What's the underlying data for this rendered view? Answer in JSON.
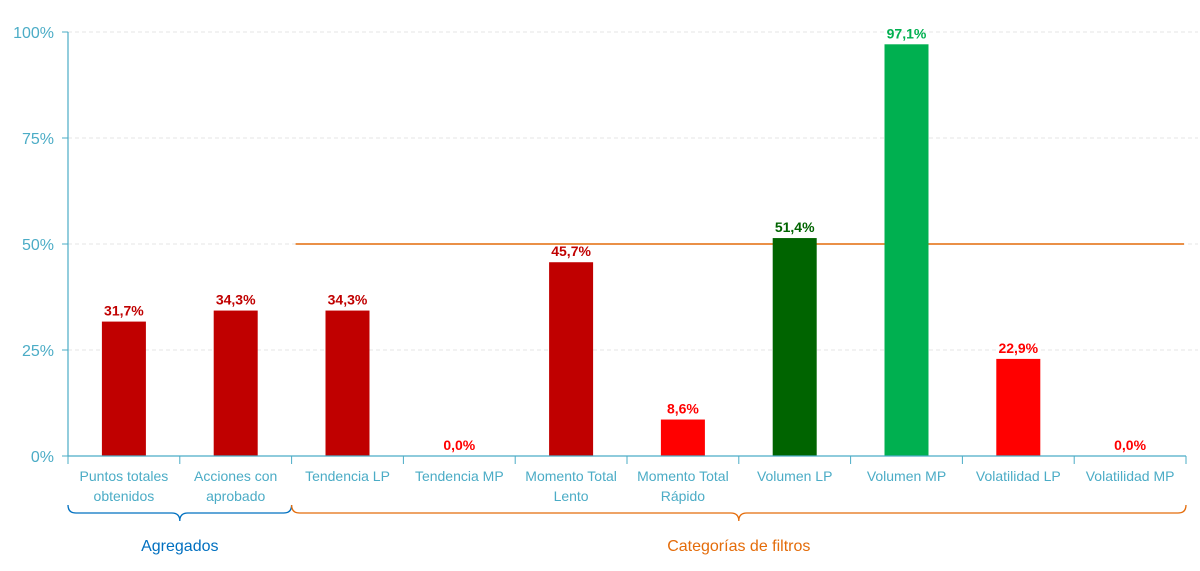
{
  "chart_data": {
    "type": "bar",
    "categories": [
      [
        "Puntos totales",
        "obtenidos"
      ],
      [
        "Acciones con",
        "aprobado"
      ],
      [
        "Tendencia LP"
      ],
      [
        "Tendencia MP"
      ],
      [
        "Momento Total",
        "Lento"
      ],
      [
        "Momento Total",
        "Rápido"
      ],
      [
        "Volumen LP"
      ],
      [
        "Volumen MP"
      ],
      [
        "Volatilidad LP"
      ],
      [
        "Volatilidad MP"
      ]
    ],
    "values": [
      31.7,
      34.3,
      34.3,
      0.0,
      45.7,
      8.6,
      51.4,
      97.1,
      22.9,
      0.0
    ],
    "data_labels": [
      "31,7%",
      "34,3%",
      "34,3%",
      "0,0%",
      "45,7%",
      "8,6%",
      "51,4%",
      "97,1%",
      "22,9%",
      "0,0%"
    ],
    "bar_colors": [
      "#c00000",
      "#c00000",
      "#c00000",
      "#ff0000",
      "#c00000",
      "#ff0000",
      "#006400",
      "#00b050",
      "#ff0000",
      "#ff0000"
    ],
    "label_colors": [
      "#c00000",
      "#c00000",
      "#c00000",
      "#ff0000",
      "#c00000",
      "#ff0000",
      "#006400",
      "#00b050",
      "#ff0000",
      "#ff0000"
    ],
    "yticks": [
      "0%",
      "25%",
      "50%",
      "75%",
      "100%"
    ],
    "ytick_values": [
      0,
      25,
      50,
      75,
      100
    ],
    "ylim": [
      0,
      100
    ],
    "reference_line": {
      "value": 50,
      "color": "#e46c0a",
      "from_category": 2
    },
    "groups": [
      {
        "label": "Agregados",
        "from": 0,
        "to": 1,
        "color": "#0070c0"
      },
      {
        "label": "Categorías de filtros",
        "from": 2,
        "to": 9,
        "color": "#e46c0a"
      }
    ],
    "grid": true,
    "xlabel": "",
    "ylabel": ""
  }
}
